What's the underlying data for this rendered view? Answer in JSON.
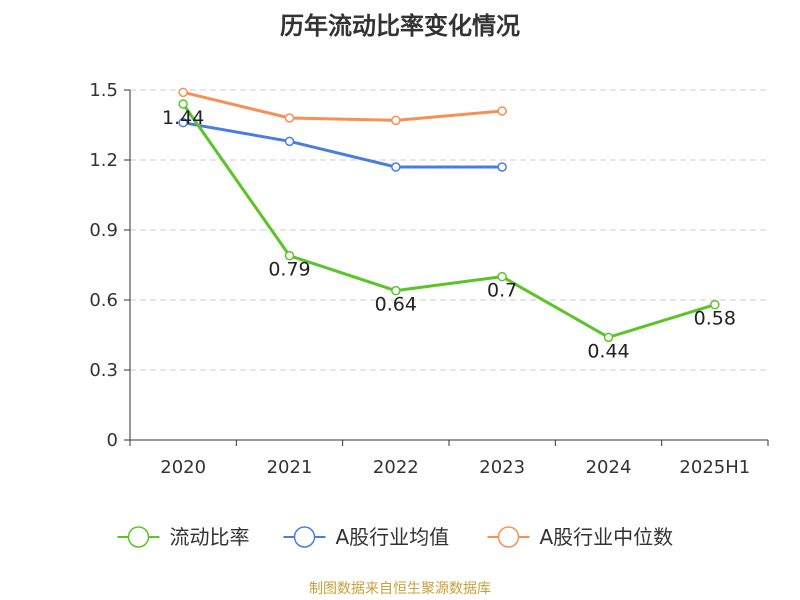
{
  "title": "历年流动比率变化情况",
  "source_note": "制图数据来自恒生聚源数据库",
  "chart_data": {
    "type": "line",
    "title": "历年流动比率变化情况",
    "categories": [
      "2020",
      "2021",
      "2022",
      "2023",
      "2024",
      "2025H1"
    ],
    "yticks": [
      "0",
      "0.3",
      "0.6",
      "0.9",
      "1.2",
      "1.5"
    ],
    "ylim": [
      0,
      1.5
    ],
    "grid": true,
    "legend_position": "bottom",
    "series": [
      {
        "name": "流动比率",
        "color": "#5cc328",
        "values": [
          1.44,
          0.79,
          0.64,
          0.7,
          0.44,
          0.58
        ],
        "labels": [
          "1.44",
          "0.79",
          "0.64",
          "0.7",
          "0.44",
          "0.58"
        ]
      },
      {
        "name": "A股行业均值",
        "color": "#4a7ddf",
        "values": [
          1.36,
          1.28,
          1.17,
          1.17,
          null,
          null
        ]
      },
      {
        "name": "A股行业中位数",
        "color": "#f79057",
        "values": [
          1.49,
          1.38,
          1.37,
          1.41,
          null,
          null
        ]
      }
    ]
  }
}
